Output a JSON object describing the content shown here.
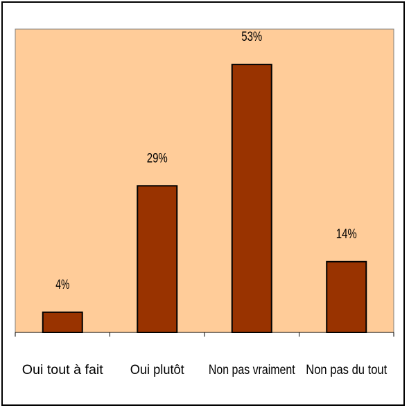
{
  "chart_data": {
    "type": "bar",
    "categories": [
      "Oui tout à fait",
      "Oui plutôt",
      "Non pas vraiment",
      "Non pas du tout"
    ],
    "values": [
      4,
      29,
      53,
      14
    ],
    "data_labels": [
      "4%",
      "29%",
      "53%",
      "14%"
    ],
    "title": "",
    "xlabel": "",
    "ylabel": "",
    "ylim": [
      0,
      60
    ],
    "grid": false,
    "legend": "none",
    "colors": {
      "plot_background": "#FFCC99",
      "bar_fill": "#993300",
      "bar_stroke": "#000000",
      "frame": "#000000"
    }
  }
}
